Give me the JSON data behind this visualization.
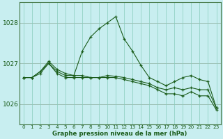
{
  "xlabel": "Graphe pression niveau de la mer (hPa)",
  "x_ticks": [
    0,
    1,
    2,
    3,
    4,
    5,
    6,
    7,
    8,
    9,
    10,
    11,
    12,
    13,
    14,
    15,
    16,
    17,
    18,
    19,
    20,
    21,
    22,
    23
  ],
  "ylim": [
    1025.5,
    1028.5
  ],
  "yticks": [
    1026,
    1027,
    1028
  ],
  "background_color": "#c8eef0",
  "grid_color": "#88ccbb",
  "line_color": "#1a5c1a",
  "spike_line": [
    1026.65,
    1026.65,
    1026.8,
    1027.0,
    1026.8,
    1026.7,
    1026.7,
    1027.3,
    1027.65,
    1027.85,
    1028.0,
    1028.15,
    1027.6,
    1027.3,
    1026.95,
    1026.65,
    1026.55,
    1026.45,
    1026.55,
    1026.65,
    1026.7,
    1026.6,
    1026.55,
    1025.9
  ],
  "decline_line": [
    1026.65,
    1026.65,
    1026.8,
    1027.05,
    1026.85,
    1026.75,
    1026.7,
    1026.7,
    1026.65,
    1026.65,
    1026.7,
    1026.68,
    1026.65,
    1026.6,
    1026.55,
    1026.5,
    1026.4,
    1026.35,
    1026.4,
    1026.35,
    1026.4,
    1026.35,
    1026.35,
    1025.9
  ],
  "flat_line": [
    1026.65,
    1026.65,
    1026.75,
    1027.0,
    1026.75,
    1026.65,
    1026.65,
    1026.65,
    1026.65,
    1026.65,
    1026.65,
    1026.65,
    1026.6,
    1026.55,
    1026.5,
    1026.45,
    1026.35,
    1026.25,
    1026.25,
    1026.2,
    1026.3,
    1026.2,
    1026.2,
    1025.85
  ]
}
